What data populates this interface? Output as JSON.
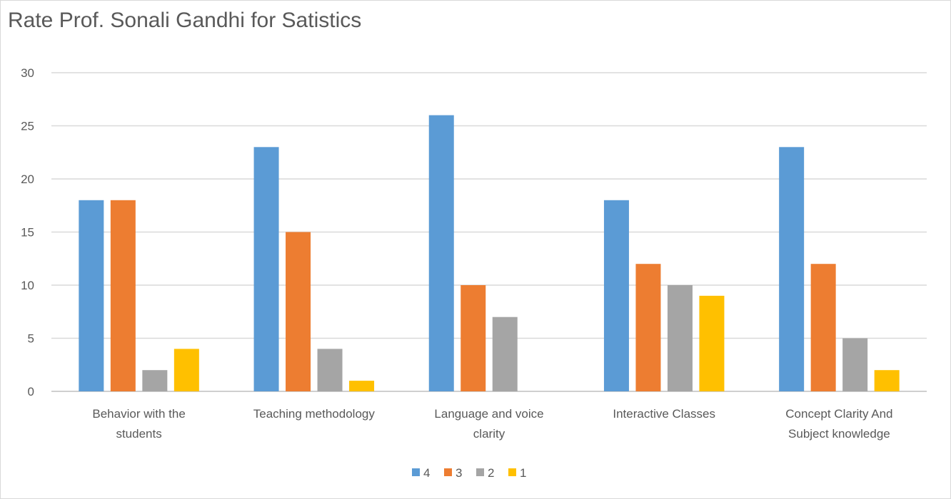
{
  "chart_data": {
    "type": "bar",
    "title": "Rate Prof. Sonali Gandhi for Satistics",
    "categories": [
      [
        "Behavior with the",
        "students"
      ],
      [
        "Teaching methodology"
      ],
      [
        "Language and voice",
        "clarity"
      ],
      [
        "Interactive Classes"
      ],
      [
        "Concept Clarity And",
        "Subject knowledge"
      ]
    ],
    "series": [
      {
        "name": "4",
        "color": "#5b9bd5",
        "values": [
          18,
          23,
          26,
          18,
          23
        ]
      },
      {
        "name": "3",
        "color": "#ed7d31",
        "values": [
          18,
          15,
          10,
          12,
          12
        ]
      },
      {
        "name": "2",
        "color": "#a5a5a5",
        "values": [
          2,
          4,
          7,
          10,
          5
        ]
      },
      {
        "name": "1",
        "color": "#ffc000",
        "values": [
          4,
          1,
          0,
          9,
          2
        ]
      }
    ],
    "ylim": [
      0,
      30
    ],
    "yticks": [
      0,
      5,
      10,
      15,
      20,
      25,
      30
    ],
    "grid": true,
    "legend": "bottom"
  }
}
